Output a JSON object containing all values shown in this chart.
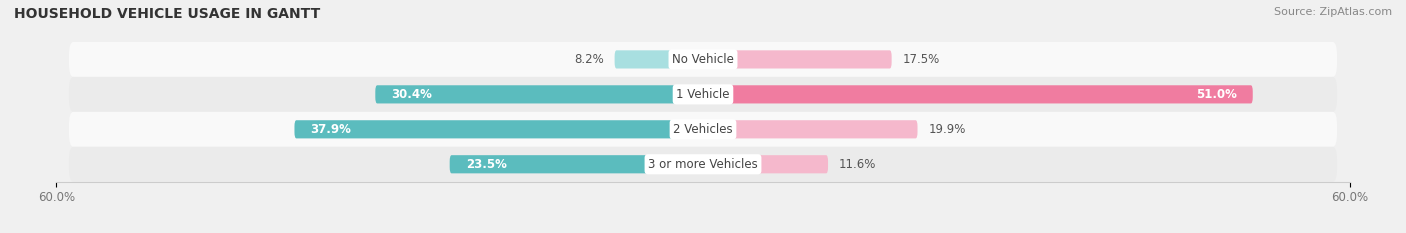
{
  "title": "HOUSEHOLD VEHICLE USAGE IN GANTT",
  "source": "Source: ZipAtlas.com",
  "categories": [
    "No Vehicle",
    "1 Vehicle",
    "2 Vehicles",
    "3 or more Vehicles"
  ],
  "owner_values": [
    8.2,
    30.4,
    37.9,
    23.5
  ],
  "renter_values": [
    17.5,
    51.0,
    19.9,
    11.6
  ],
  "owner_color": "#5bbcbe",
  "renter_color": "#f07ca0",
  "owner_color_light": "#a8dfe0",
  "renter_color_light": "#f5b8cc",
  "axis_label_left": "60.0%",
  "axis_label_right": "60.0%",
  "x_max": 60.0,
  "bar_height": 0.52,
  "bg_color": "#f0f0f0",
  "row_color_light": "#f9f9f9",
  "row_color_dark": "#ebebeb",
  "title_fontsize": 10,
  "source_fontsize": 8,
  "bar_label_fontsize": 8.5,
  "category_fontsize": 8.5,
  "legend_fontsize": 8.5,
  "axis_tick_fontsize": 8.5,
  "owner_inside_threshold": 15,
  "renter_inside_threshold": 30
}
